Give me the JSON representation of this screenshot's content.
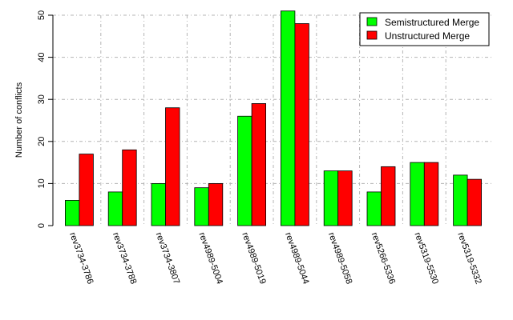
{
  "chart_data": {
    "type": "bar",
    "title": "",
    "xlabel": "",
    "ylabel": "Number of conflicts",
    "ylim": [
      0,
      50
    ],
    "yticks": [
      0,
      10,
      20,
      30,
      40,
      50
    ],
    "grid": true,
    "legend_position": "top-right",
    "categories": [
      "rev3734-3786",
      "rev3734-3788",
      "rev3734-3807",
      "rev4989-5004",
      "rev4989-5019",
      "rev4989-5044",
      "rev4989-5058",
      "rev5266-5336",
      "rev5319-5530",
      "rev5319-5332"
    ],
    "series": [
      {
        "name": "Semistructured Merge",
        "color": "#00ff00",
        "values": [
          6,
          8,
          10,
          9,
          26,
          51,
          13,
          8,
          15,
          12
        ]
      },
      {
        "name": "Unstructured Merge",
        "color": "#ff0000",
        "values": [
          17,
          18,
          28,
          10,
          29,
          48,
          13,
          14,
          15,
          11
        ]
      }
    ]
  }
}
